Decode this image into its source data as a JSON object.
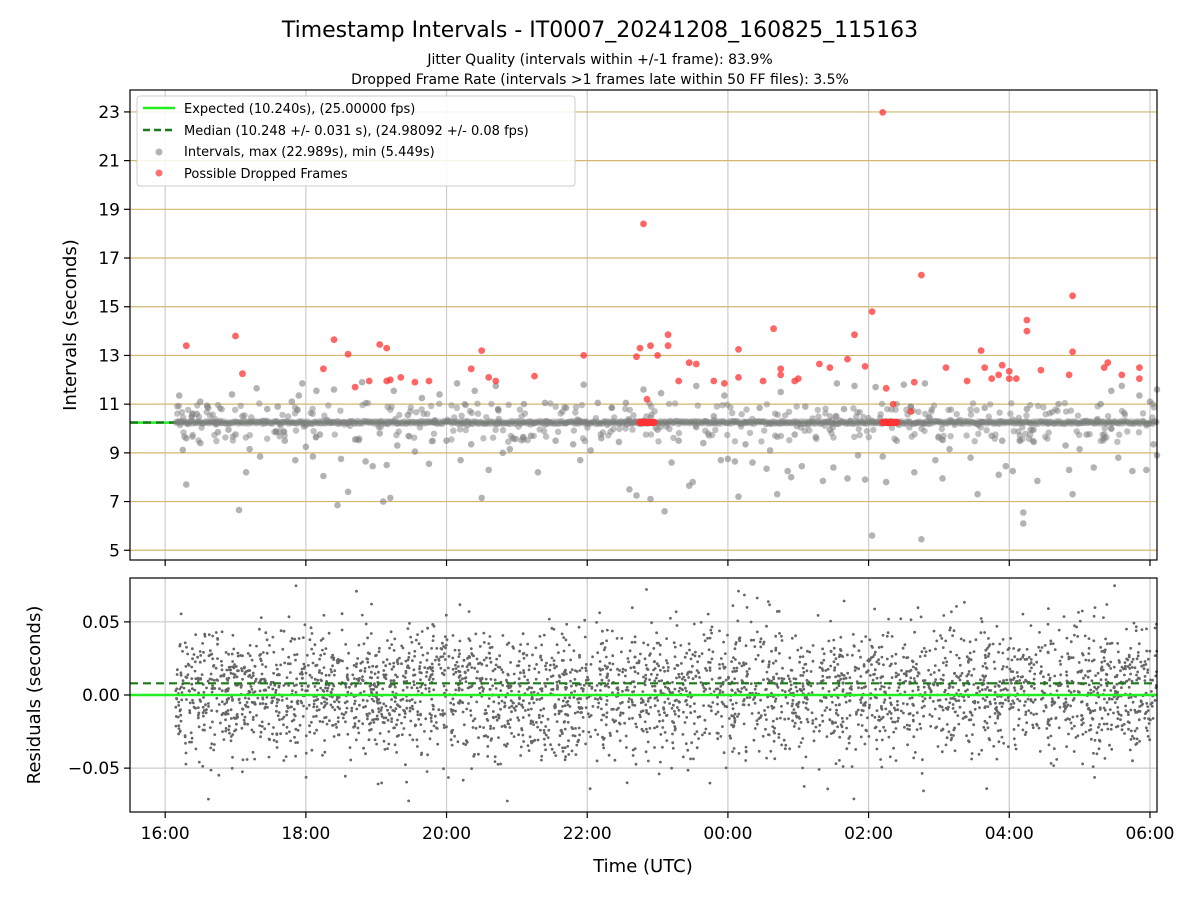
{
  "title": "Timestamp Intervals - IT0007_20241208_160825_115163",
  "subtitle_lines": [
    "Jitter Quality (intervals within +/-1 frame): 83.9%",
    "Dropped Frame Rate (intervals >1 frames late within 50 FF files): 3.5%"
  ],
  "colors": {
    "expected": "#22ee22",
    "median": "#1a7a1a",
    "intervals": "#808080",
    "dropped": "#ff3333",
    "gridline_h": "#d2b86e",
    "gridline_v": "#cccccc"
  },
  "chart_data": [
    {
      "type": "scatter",
      "panel": "top",
      "ylabel": "Intervals (seconds)",
      "ylim": [
        4.6,
        23.9
      ],
      "xlim_hours": [
        15.5,
        30.1
      ],
      "yticks": [
        5,
        7,
        9,
        11,
        13,
        15,
        17,
        19,
        21,
        23
      ],
      "ytick_labels": [
        "5",
        "7",
        "9",
        "11",
        "13",
        "15",
        "17",
        "19",
        "21",
        "23"
      ],
      "xticks_hours": [
        16,
        18,
        20,
        22,
        24,
        26,
        28,
        30
      ],
      "grid": "on",
      "legend_position": "top-left",
      "legend": [
        "Expected (10.240s), (25.00000 fps)",
        "Median (10.248 +/- 0.031 s), (24.98092 +/- 0.08 fps)",
        "Intervals, max (22.989s), min (5.449s)",
        "Possible Dropped Frames"
      ],
      "expected_value": 10.24,
      "median_value": 10.248,
      "series": [
        {
          "name": "Intervals, max (22.989s), min (5.449s)",
          "points": [
            [
              16.2,
              11.35
            ],
            [
              16.25,
              9.12
            ],
            [
              16.3,
              9.6
            ],
            [
              16.3,
              7.7
            ],
            [
              16.45,
              10.6
            ],
            [
              16.5,
              11.1
            ],
            [
              16.5,
              9.4
            ],
            [
              16.6,
              10.9
            ],
            [
              16.75,
              9.85
            ],
            [
              16.9,
              9.95
            ],
            [
              16.95,
              11.4
            ],
            [
              17.0,
              9.75
            ],
            [
              17.05,
              6.65
            ],
            [
              17.1,
              10.5
            ],
            [
              17.15,
              8.2
            ],
            [
              17.2,
              9.15
            ],
            [
              17.3,
              11.65
            ],
            [
              17.35,
              8.85
            ],
            [
              17.45,
              10.8
            ],
            [
              17.6,
              10.9
            ],
            [
              17.7,
              9.5
            ],
            [
              17.8,
              11.1
            ],
            [
              17.85,
              8.7
            ],
            [
              17.9,
              11.35
            ],
            [
              17.95,
              11.85
            ],
            [
              18.0,
              9.25
            ],
            [
              18.1,
              8.85
            ],
            [
              18.15,
              11.55
            ],
            [
              18.2,
              9.75
            ],
            [
              18.25,
              8.05
            ],
            [
              18.3,
              10.35
            ],
            [
              18.4,
              11.6
            ],
            [
              18.45,
              6.85
            ],
            [
              18.5,
              8.75
            ],
            [
              18.6,
              7.4
            ],
            [
              18.7,
              9.55
            ],
            [
              18.8,
              11.9
            ],
            [
              18.85,
              8.65
            ],
            [
              18.95,
              8.45
            ],
            [
              19.05,
              9.8
            ],
            [
              19.1,
              7.0
            ],
            [
              19.15,
              8.5
            ],
            [
              19.2,
              7.15
            ],
            [
              19.25,
              11.55
            ],
            [
              19.3,
              9.3
            ],
            [
              19.45,
              10.55
            ],
            [
              19.55,
              9.05
            ],
            [
              19.65,
              11.25
            ],
            [
              19.75,
              8.55
            ],
            [
              19.9,
              11.4
            ],
            [
              20.0,
              9.5
            ],
            [
              20.15,
              11.85
            ],
            [
              20.2,
              8.7
            ],
            [
              20.3,
              10.15
            ],
            [
              20.35,
              9.35
            ],
            [
              20.4,
              11.55
            ],
            [
              20.5,
              7.15
            ],
            [
              20.6,
              8.3
            ],
            [
              20.7,
              11.75
            ],
            [
              20.8,
              9.0
            ],
            [
              20.9,
              9.15
            ],
            [
              21.1,
              11.0
            ],
            [
              21.2,
              9.7
            ],
            [
              21.3,
              8.2
            ],
            [
              21.4,
              11.05
            ],
            [
              21.55,
              9.5
            ],
            [
              21.7,
              10.85
            ],
            [
              21.8,
              9.35
            ],
            [
              21.9,
              8.7
            ],
            [
              21.95,
              11.8
            ],
            [
              22.05,
              9.1
            ],
            [
              22.15,
              11.05
            ],
            [
              22.2,
              9.6
            ],
            [
              22.35,
              10.85
            ],
            [
              22.45,
              9.45
            ],
            [
              22.55,
              11.05
            ],
            [
              22.6,
              7.5
            ],
            [
              22.7,
              7.25
            ],
            [
              22.8,
              11.6
            ],
            [
              22.9,
              7.1
            ],
            [
              23.0,
              9.95
            ],
            [
              23.05,
              11.45
            ],
            [
              23.1,
              6.6
            ],
            [
              23.2,
              8.6
            ],
            [
              23.3,
              9.5
            ],
            [
              23.45,
              7.65
            ],
            [
              23.5,
              7.8
            ],
            [
              23.55,
              11.75
            ],
            [
              23.65,
              9.4
            ],
            [
              23.8,
              10.5
            ],
            [
              23.9,
              8.7
            ],
            [
              23.95,
              11.35
            ],
            [
              24.0,
              8.75
            ],
            [
              24.1,
              8.65
            ],
            [
              24.15,
              7.2
            ],
            [
              24.25,
              9.35
            ],
            [
              24.35,
              8.6
            ],
            [
              24.45,
              10.85
            ],
            [
              24.55,
              8.35
            ],
            [
              24.6,
              9.1
            ],
            [
              24.7,
              7.3
            ],
            [
              24.75,
              11.5
            ],
            [
              24.85,
              8.25
            ],
            [
              24.9,
              8.0
            ],
            [
              24.95,
              9.75
            ],
            [
              25.05,
              8.45
            ],
            [
              25.1,
              10.9
            ],
            [
              25.25,
              9.65
            ],
            [
              25.35,
              7.85
            ],
            [
              25.45,
              9.95
            ],
            [
              25.5,
              8.4
            ],
            [
              25.55,
              11.85
            ],
            [
              25.65,
              10.8
            ],
            [
              25.7,
              7.95
            ],
            [
              25.8,
              11.75
            ],
            [
              25.85,
              8.9
            ],
            [
              25.95,
              7.9
            ],
            [
              26.05,
              5.6
            ],
            [
              26.1,
              11.7
            ],
            [
              26.2,
              8.85
            ],
            [
              26.25,
              7.8
            ],
            [
              26.4,
              9.5
            ],
            [
              26.5,
              11.8
            ],
            [
              26.6,
              10.9
            ],
            [
              26.65,
              8.2
            ],
            [
              26.75,
              5.45
            ],
            [
              26.8,
              11.85
            ],
            [
              26.95,
              8.7
            ],
            [
              27.05,
              7.95
            ],
            [
              27.15,
              9.15
            ],
            [
              27.3,
              10.35
            ],
            [
              27.45,
              8.8
            ],
            [
              27.55,
              7.3
            ],
            [
              27.65,
              10.85
            ],
            [
              27.75,
              9.7
            ],
            [
              27.85,
              8.1
            ],
            [
              27.9,
              9.5
            ],
            [
              27.95,
              8.45
            ],
            [
              28.05,
              8.25
            ],
            [
              28.2,
              6.1
            ],
            [
              28.2,
              6.55
            ],
            [
              28.25,
              10.8
            ],
            [
              28.35,
              9.45
            ],
            [
              28.4,
              7.85
            ],
            [
              28.55,
              10.2
            ],
            [
              28.7,
              11.0
            ],
            [
              28.8,
              9.3
            ],
            [
              28.85,
              8.3
            ],
            [
              28.9,
              7.3
            ],
            [
              29.0,
              9.15
            ],
            [
              29.1,
              9.75
            ],
            [
              29.2,
              8.4
            ],
            [
              29.3,
              11.0
            ],
            [
              29.35,
              9.6
            ],
            [
              29.45,
              11.55
            ],
            [
              29.55,
              8.8
            ],
            [
              29.6,
              11.75
            ],
            [
              29.75,
              8.25
            ],
            [
              29.85,
              11.35
            ],
            [
              29.95,
              8.3
            ],
            [
              30.0,
              11.1
            ],
            [
              30.05,
              9.35
            ],
            [
              30.1,
              11.6
            ],
            [
              30.1,
              8.9
            ]
          ]
        },
        {
          "name": "Possible Dropped Frames",
          "points": [
            [
              16.3,
              13.4
            ],
            [
              17.0,
              13.8
            ],
            [
              17.1,
              12.25
            ],
            [
              18.25,
              12.45
            ],
            [
              18.4,
              13.65
            ],
            [
              18.6,
              13.05
            ],
            [
              18.7,
              11.7
            ],
            [
              18.9,
              11.95
            ],
            [
              19.05,
              13.45
            ],
            [
              19.15,
              13.3
            ],
            [
              19.15,
              11.95
            ],
            [
              19.2,
              12.0
            ],
            [
              19.35,
              12.1
            ],
            [
              19.55,
              11.9
            ],
            [
              19.75,
              11.95
            ],
            [
              20.35,
              12.45
            ],
            [
              20.5,
              13.2
            ],
            [
              20.6,
              12.1
            ],
            [
              20.7,
              11.95
            ],
            [
              21.25,
              12.15
            ],
            [
              21.95,
              13.0
            ],
            [
              22.7,
              12.95
            ],
            [
              22.75,
              13.3
            ],
            [
              22.8,
              18.4
            ],
            [
              22.85,
              11.2
            ],
            [
              22.9,
              13.4
            ],
            [
              23.0,
              13.0
            ],
            [
              23.15,
              13.4
            ],
            [
              23.15,
              13.85
            ],
            [
              23.3,
              11.95
            ],
            [
              23.45,
              12.7
            ],
            [
              23.55,
              12.65
            ],
            [
              23.8,
              11.95
            ],
            [
              23.95,
              11.85
            ],
            [
              24.15,
              13.25
            ],
            [
              24.15,
              12.1
            ],
            [
              24.5,
              11.95
            ],
            [
              24.65,
              14.1
            ],
            [
              24.75,
              12.2
            ],
            [
              24.75,
              12.45
            ],
            [
              24.95,
              11.95
            ],
            [
              25.0,
              12.05
            ],
            [
              25.3,
              12.65
            ],
            [
              25.45,
              12.5
            ],
            [
              25.7,
              12.85
            ],
            [
              25.8,
              13.85
            ],
            [
              25.95,
              12.55
            ],
            [
              26.05,
              14.8
            ],
            [
              26.2,
              22.98
            ],
            [
              26.25,
              11.65
            ],
            [
              26.35,
              11.0
            ],
            [
              26.6,
              10.7
            ],
            [
              26.65,
              11.9
            ],
            [
              26.75,
              16.3
            ],
            [
              27.1,
              12.5
            ],
            [
              27.4,
              11.95
            ],
            [
              27.6,
              13.2
            ],
            [
              27.65,
              12.5
            ],
            [
              27.75,
              12.05
            ],
            [
              27.85,
              12.2
            ],
            [
              27.9,
              12.6
            ],
            [
              28.0,
              12.05
            ],
            [
              28.0,
              12.35
            ],
            [
              28.1,
              12.05
            ],
            [
              28.25,
              14.45
            ],
            [
              28.25,
              14.0
            ],
            [
              28.45,
              12.4
            ],
            [
              28.85,
              12.2
            ],
            [
              28.9,
              13.15
            ],
            [
              28.9,
              15.45
            ],
            [
              29.35,
              12.5
            ],
            [
              29.4,
              12.7
            ],
            [
              29.6,
              12.2
            ],
            [
              29.85,
              12.05
            ],
            [
              29.85,
              12.5
            ]
          ]
        }
      ],
      "dropped_clusters_hours": [
        [
          22.75,
          22.95
        ],
        [
          26.2,
          26.4
        ]
      ]
    },
    {
      "type": "scatter",
      "panel": "bottom",
      "xlabel": "Time (UTC)",
      "ylabel": "Residuals (seconds)",
      "ylim": [
        -0.08,
        0.08
      ],
      "xlim_hours": [
        15.5,
        30.1
      ],
      "yticks": [
        0.05,
        0.0,
        -0.05
      ],
      "ytick_labels": [
        "0.05",
        "0.00",
        "−0.05"
      ],
      "xticks_hours": [
        16,
        18,
        20,
        22,
        24,
        26,
        28,
        30
      ],
      "xtick_labels": [
        "16:00",
        "18:00",
        "20:00",
        "22:00",
        "00:00",
        "02:00",
        "04:00",
        "06:00"
      ],
      "grid": "on",
      "expected_value": 0.0,
      "median_value": 0.008,
      "series": [
        {
          "name": "Residuals",
          "x_range_hours": [
            16.15,
            30.1
          ],
          "count": 3500,
          "stdev": 0.022,
          "clip": 0.075
        }
      ]
    }
  ]
}
